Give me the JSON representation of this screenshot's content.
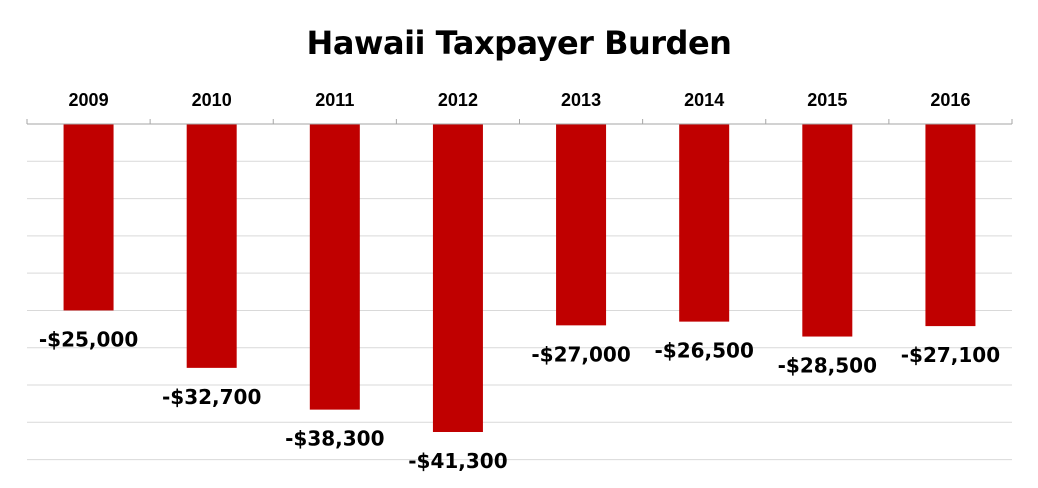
{
  "chart_data": {
    "type": "bar",
    "title": "Hawaii Taxpayer Burden",
    "xlabel": "",
    "ylabel": "",
    "categories": [
      "2009",
      "2010",
      "2011",
      "2012",
      "2013",
      "2014",
      "2015",
      "2016"
    ],
    "values": [
      -25000,
      -32700,
      -38300,
      -41300,
      -27000,
      -26500,
      -28500,
      -27100
    ],
    "data_labels": [
      "-$25,000",
      "-$32,700",
      "-$38,300",
      "-$41,300",
      "-$27,000",
      "-$26,500",
      "-$28,500",
      "-$27,100"
    ],
    "ylim": [
      -45000,
      0
    ],
    "grid": true,
    "category_axis_position": "top",
    "bar_color": "#c00000"
  }
}
